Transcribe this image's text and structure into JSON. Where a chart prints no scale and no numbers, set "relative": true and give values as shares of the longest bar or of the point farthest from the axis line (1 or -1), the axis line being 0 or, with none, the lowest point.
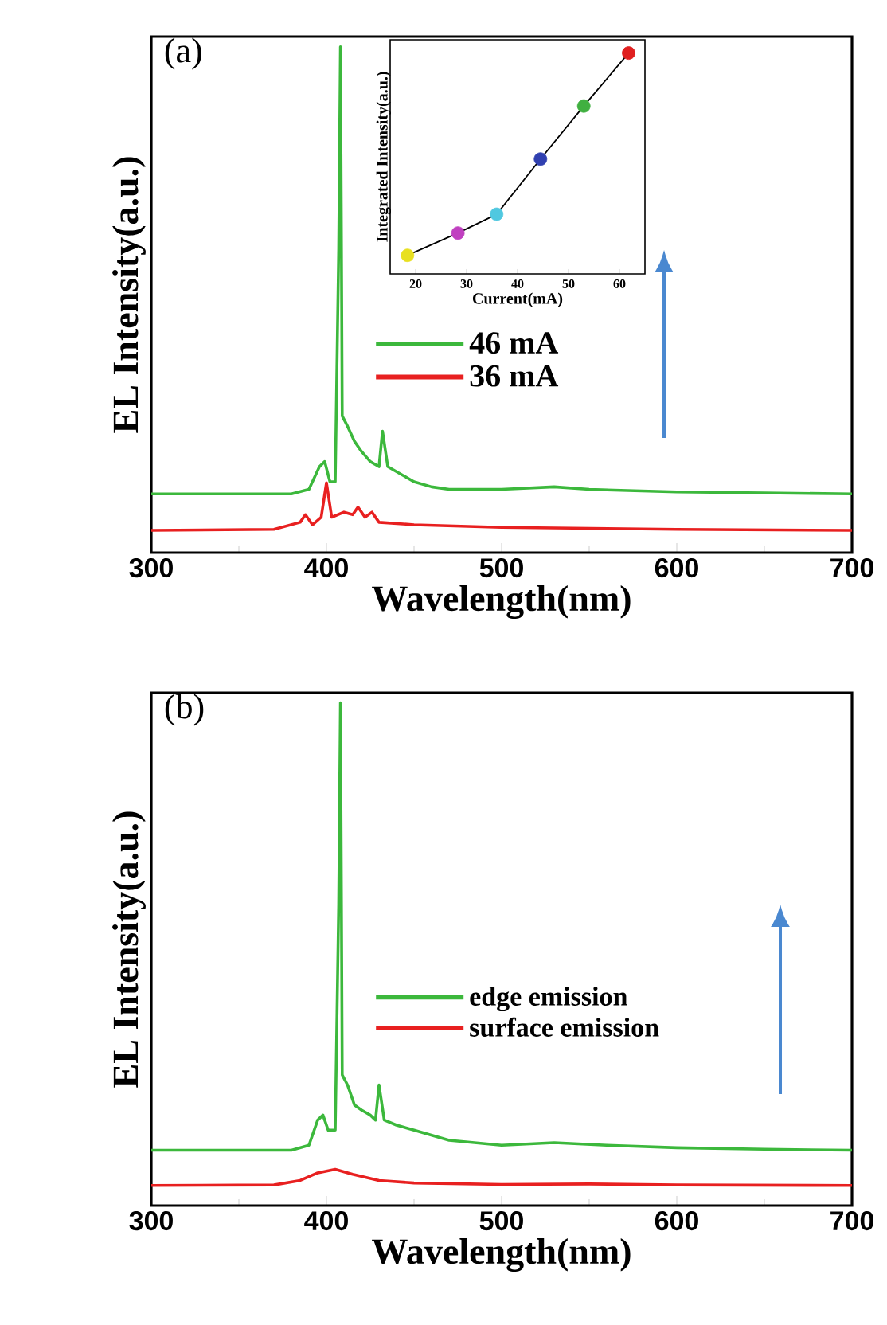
{
  "chart_data": [
    {
      "type": "line",
      "title": "(a)",
      "xlabel": "Wavelength(nm)",
      "ylabel": "EL Intensity(a.u.)",
      "relative": true,
      "xlim": [
        300,
        700
      ],
      "xticks": [
        300,
        400,
        500,
        600,
        700
      ],
      "legend": "center",
      "series": [
        {
          "name": "46 mA",
          "color": "#3cb83c",
          "x": [
            300,
            380,
            390,
            396,
            399,
            402,
            405,
            407,
            408,
            409,
            412,
            416,
            420,
            425,
            430,
            432,
            435,
            440,
            450,
            460,
            470,
            500,
            530,
            550,
            600,
            650,
            700
          ],
          "values": [
            0.116,
            0.116,
            0.125,
            0.17,
            0.18,
            0.14,
            0.14,
            0.6,
            1.0,
            0.27,
            0.25,
            0.22,
            0.2,
            0.18,
            0.17,
            0.24,
            0.17,
            0.16,
            0.14,
            0.13,
            0.125,
            0.125,
            0.13,
            0.125,
            0.12,
            0.118,
            0.116
          ]
        },
        {
          "name": "36 mA",
          "color": "#e82020",
          "x": [
            300,
            370,
            385,
            388,
            392,
            397,
            400,
            403,
            410,
            415,
            418,
            422,
            426,
            430,
            450,
            500,
            600,
            700
          ],
          "values": [
            0.044,
            0.046,
            0.06,
            0.075,
            0.055,
            0.07,
            0.138,
            0.07,
            0.08,
            0.075,
            0.09,
            0.07,
            0.08,
            0.06,
            0.055,
            0.05,
            0.046,
            0.044
          ]
        }
      ]
    },
    {
      "type": "line",
      "xlabel": "Current(mA)",
      "ylabel": "Integrated Intensity(a.u.)",
      "relative": true,
      "xlim": [
        15,
        65
      ],
      "xticks": [
        20,
        30,
        40,
        50,
        60
      ],
      "marker": "circle",
      "series": [
        {
          "color": "#000000",
          "x": [
            18.4,
            28.3,
            35.9,
            44.5,
            53,
            61.8
          ],
          "values": [
            0.084,
            0.185,
            0.27,
            0.52,
            0.76,
            1.0
          ],
          "colors": [
            "#e8e020",
            "#c040c0",
            "#50c8e0",
            "#3040b0",
            "#40b040",
            "#e02020"
          ]
        }
      ]
    },
    {
      "type": "line",
      "title": "(b)",
      "xlabel": "Wavelength(nm)",
      "ylabel": "EL Intensity(a.u.)",
      "relative": true,
      "xlim": [
        300,
        700
      ],
      "xticks": [
        300,
        400,
        500,
        600,
        700
      ],
      "legend": "center",
      "series": [
        {
          "name": "edge emission",
          "color": "#3cb83c",
          "x": [
            300,
            380,
            390,
            395,
            398,
            401,
            405,
            407,
            408,
            409,
            412,
            416,
            420,
            425,
            428,
            430,
            433,
            440,
            450,
            470,
            500,
            530,
            560,
            600,
            650,
            700
          ],
          "values": [
            0.11,
            0.11,
            0.12,
            0.17,
            0.18,
            0.15,
            0.15,
            0.6,
            1.0,
            0.26,
            0.24,
            0.2,
            0.19,
            0.18,
            0.17,
            0.24,
            0.17,
            0.16,
            0.15,
            0.13,
            0.12,
            0.125,
            0.12,
            0.115,
            0.112,
            0.11
          ]
        },
        {
          "name": "surface emission",
          "color": "#e82020",
          "x": [
            300,
            370,
            385,
            395,
            405,
            415,
            430,
            450,
            500,
            550,
            600,
            700
          ],
          "values": [
            0.04,
            0.041,
            0.05,
            0.065,
            0.072,
            0.062,
            0.05,
            0.045,
            0.042,
            0.043,
            0.041,
            0.04
          ]
        }
      ]
    }
  ]
}
